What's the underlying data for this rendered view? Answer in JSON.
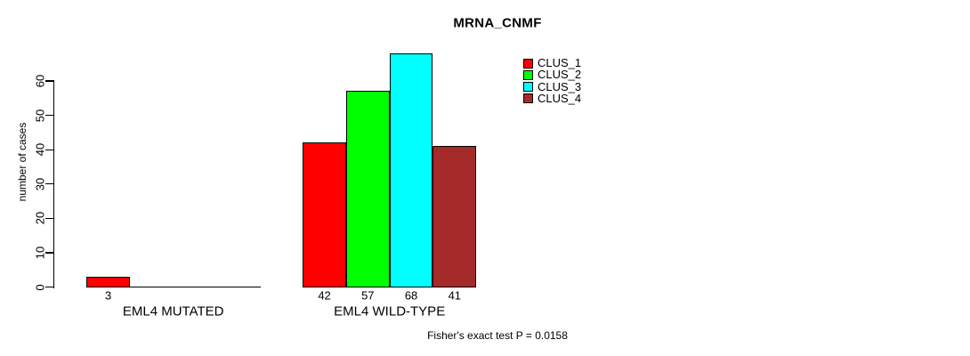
{
  "chart_data": {
    "type": "bar",
    "title": "MRNA_CNMF",
    "ylabel": "number of cases",
    "xlabel": "",
    "ylim": [
      0,
      60
    ],
    "yticks": [
      0,
      10,
      20,
      30,
      40,
      50,
      60
    ],
    "grid": false,
    "background": "#ffffff",
    "axis_color": "#000000",
    "categories": [
      "EML4 MUTATED",
      "EML4 WILD-TYPE"
    ],
    "series": [
      {
        "name": "CLUS_1",
        "color": "#ff0000",
        "values": [
          3,
          42
        ]
      },
      {
        "name": "CLUS_2",
        "color": "#00ff00",
        "values": [
          0,
          57
        ]
      },
      {
        "name": "CLUS_3",
        "color": "#00ffff",
        "values": [
          0,
          68
        ]
      },
      {
        "name": "CLUS_4",
        "color": "#a52a2a",
        "values": [
          0,
          41
        ]
      }
    ],
    "bar_value_labels": [
      [
        3,
        null,
        null,
        null
      ],
      [
        42,
        57,
        68,
        41
      ]
    ],
    "legend": {
      "position": "inside-top-right",
      "entries": [
        {
          "label": "CLUS_1",
          "color": "#ff0000"
        },
        {
          "label": "CLUS_2",
          "color": "#00ff00"
        },
        {
          "label": "CLUS_3",
          "color": "#00ffff"
        },
        {
          "label": "CLUS_4",
          "color": "#a52a2a"
        }
      ]
    },
    "annotation": "Fisher's exact test P = 0.0158"
  }
}
